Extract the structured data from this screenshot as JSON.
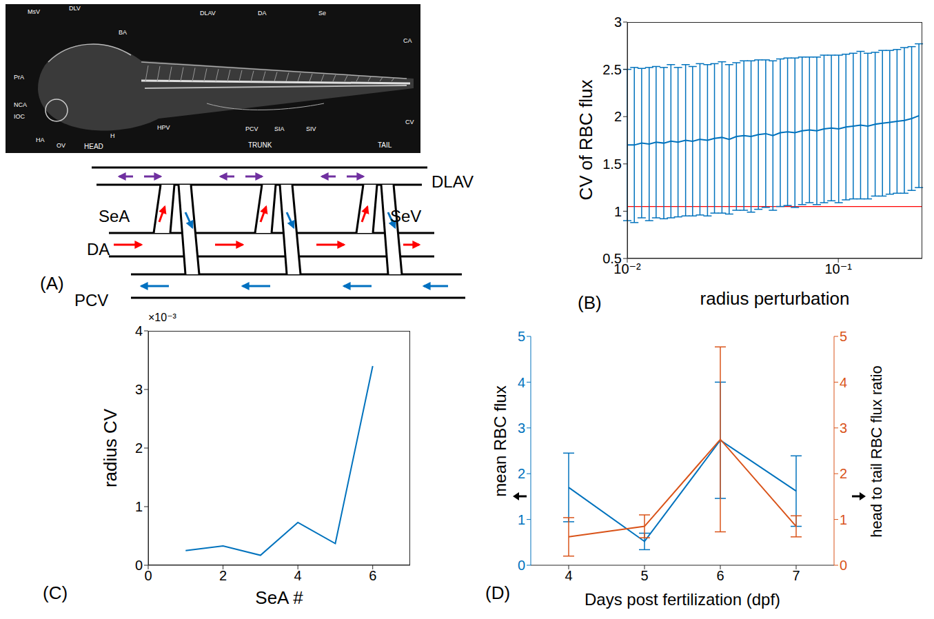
{
  "figure": {
    "panel_A": {
      "label": "(A)",
      "photo_labels": [
        "MsV",
        "DLV",
        "BA",
        "DLAV",
        "DA",
        "Se",
        "CA",
        "PrA",
        "NCA",
        "IOC",
        "HA",
        "OV",
        "H",
        "HPV",
        "PCV",
        "SIA",
        "SIV",
        "CV"
      ],
      "photo_regions": [
        "HEAD",
        "TRUNK",
        "TAIL"
      ],
      "schematic_labels": [
        "DLAV",
        "SeA",
        "SeV",
        "DA",
        "PCV"
      ]
    }
  },
  "chart_data": [
    {
      "panel": "(B)",
      "type": "line",
      "x_label": "radius perturbation",
      "y_label": "CV of RBC flux",
      "log": "x",
      "x": [
        0.01,
        0.0108,
        0.0117,
        0.0127,
        0.0137,
        0.0149,
        0.0161,
        0.0174,
        0.0189,
        0.0204,
        0.0221,
        0.024,
        0.0259,
        0.0281,
        0.0304,
        0.0329,
        0.0357,
        0.0386,
        0.0418,
        0.0453,
        0.049,
        0.0531,
        0.0575,
        0.0623,
        0.0674,
        0.073,
        0.0791,
        0.0856,
        0.0927,
        0.1004,
        0.1087,
        0.1177,
        0.1275,
        0.138,
        0.1495,
        0.1619,
        0.1753,
        0.1898,
        0.2055,
        0.2226,
        0.241
      ],
      "series": [
        {
          "color": "#0072bd",
          "values": [
            1.7,
            1.7,
            1.72,
            1.71,
            1.73,
            1.72,
            1.74,
            1.73,
            1.75,
            1.74,
            1.76,
            1.75,
            1.77,
            1.78,
            1.76,
            1.79,
            1.8,
            1.79,
            1.81,
            1.82,
            1.8,
            1.83,
            1.84,
            1.83,
            1.85,
            1.86,
            1.85,
            1.87,
            1.88,
            1.87,
            1.89,
            1.9,
            1.91,
            1.9,
            1.92,
            1.93,
            1.94,
            1.95,
            1.96,
            1.98,
            2.01
          ],
          "errors": [
            0.8,
            0.82,
            0.79,
            0.81,
            0.8,
            0.8,
            0.81,
            0.79,
            0.8,
            0.79,
            0.8,
            0.8,
            0.79,
            0.8,
            0.79,
            0.78,
            0.79,
            0.8,
            0.79,
            0.78,
            0.79,
            0.78,
            0.78,
            0.79,
            0.78,
            0.77,
            0.78,
            0.78,
            0.77,
            0.78,
            0.77,
            0.77,
            0.78,
            0.77,
            0.76,
            0.77,
            0.76,
            0.76,
            0.77,
            0.76,
            0.76
          ]
        }
      ],
      "reference_line": {
        "value": 1.05,
        "color": "#ff0000"
      },
      "xlim": [
        0.01,
        0.25
      ],
      "xticks": [
        {
          "value": 0.01,
          "label": "10⁻²"
        },
        {
          "value": 0.1,
          "label": "10⁻¹"
        }
      ],
      "ylim": [
        0.5,
        3
      ],
      "yticks": [
        0.5,
        1,
        1.5,
        2,
        2.5,
        3
      ]
    },
    {
      "panel": "(C)",
      "type": "line",
      "x_label": "SeA #",
      "y_label": "radius CV",
      "annotation": "×10⁻³",
      "x": [
        1,
        2,
        3,
        4,
        5,
        6
      ],
      "series": [
        {
          "color": "#0072bd",
          "values": [
            0.00025,
            0.00033,
            0.00017,
            0.00073,
            0.00037,
            0.0034
          ]
        }
      ],
      "xlim": [
        0,
        7
      ],
      "xticks": [
        0,
        2,
        4,
        6
      ],
      "ylim": [
        0,
        0.004
      ],
      "yticks": [
        0,
        {
          "value": 0.001,
          "label": "1"
        },
        {
          "value": 0.002,
          "label": "2"
        },
        {
          "value": 0.003,
          "label": "3"
        },
        {
          "value": 0.004,
          "label": "4"
        }
      ]
    },
    {
      "panel": "(D)",
      "type": "line",
      "x_label": "Days post fertilization (dpf)",
      "y_label": "mean RBC flux",
      "y2_label": "head to tail RBC flux ratio",
      "x": [
        4,
        5,
        6,
        7
      ],
      "series": [
        {
          "color": "#0072bd",
          "values": [
            1.7,
            0.52,
            2.73,
            1.62
          ],
          "errors": [
            0.75,
            0.18,
            1.27,
            0.77
          ]
        },
        {
          "color": "#d95319",
          "values": [
            0.62,
            0.85,
            2.75,
            0.85
          ],
          "errors": [
            0.42,
            0.25,
            2.02,
            0.23
          ],
          "axis": "y2"
        }
      ],
      "xlim": [
        3.5,
        7.5
      ],
      "xticks": [
        4,
        5,
        6,
        7
      ],
      "ylim": [
        0,
        5
      ],
      "yticks": [
        0,
        1,
        2,
        3,
        4,
        5
      ],
      "y2lim": [
        0,
        5
      ],
      "y2ticks": [
        0,
        1,
        2,
        3,
        4,
        5
      ]
    }
  ]
}
